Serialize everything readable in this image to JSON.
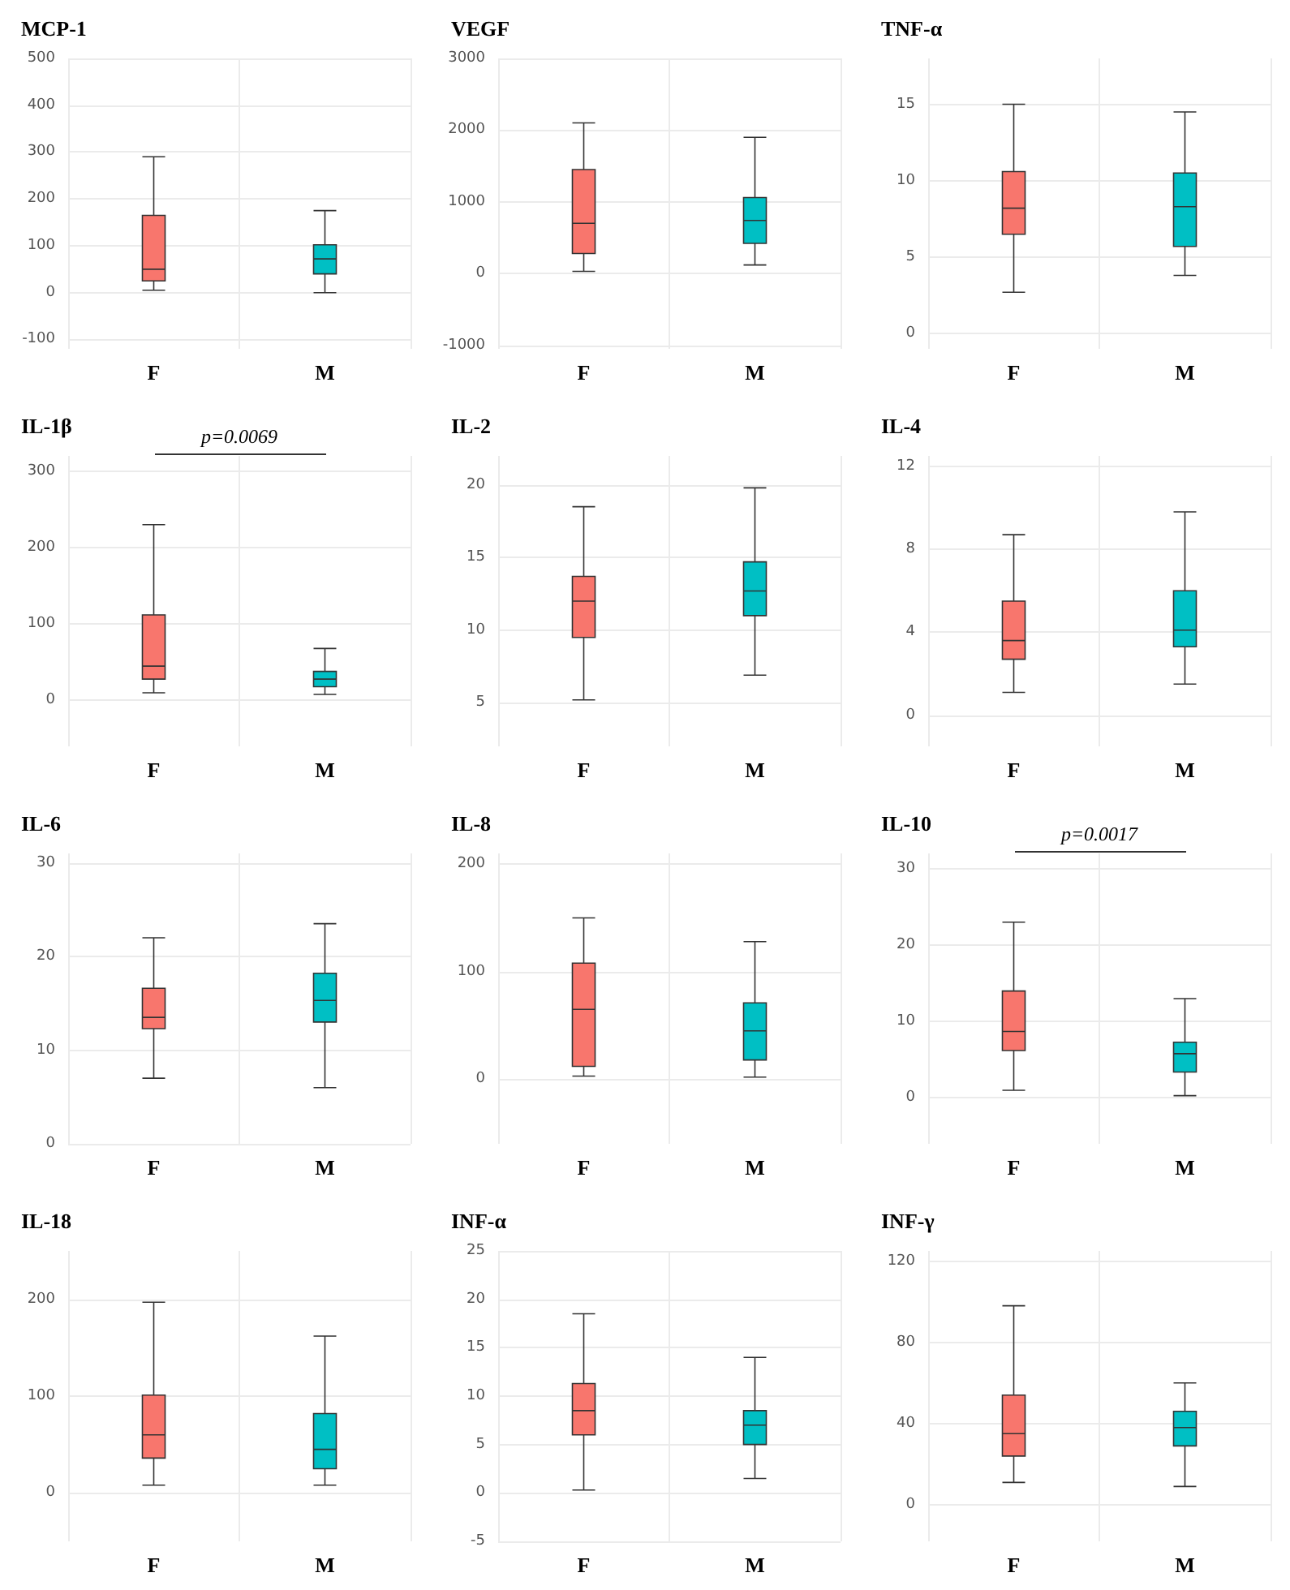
{
  "chart_data": [
    {
      "type": "box",
      "title": "MCP-1",
      "categories": [
        "F",
        "M"
      ],
      "colors": [
        "#f8766d",
        "#00bfc4"
      ],
      "ylim": [
        -120,
        500
      ],
      "yticks": [
        -100,
        0,
        100,
        200,
        300,
        400,
        500
      ],
      "grid": true,
      "boxes": [
        {
          "low": 5,
          "q1": 25,
          "median": 50,
          "q3": 165,
          "high": 290
        },
        {
          "low": 0,
          "q1": 40,
          "median": 72,
          "q3": 102,
          "high": 175
        }
      ]
    },
    {
      "type": "box",
      "title": "VEGF",
      "categories": [
        "F",
        "M"
      ],
      "colors": [
        "#f8766d",
        "#00bfc4"
      ],
      "ylim": [
        -1050,
        3000
      ],
      "yticks": [
        -1000,
        0,
        1000,
        2000,
        3000
      ],
      "grid": true,
      "boxes": [
        {
          "low": 30,
          "q1": 280,
          "median": 700,
          "q3": 1450,
          "high": 2100
        },
        {
          "low": 120,
          "q1": 420,
          "median": 740,
          "q3": 1060,
          "high": 1900
        }
      ]
    },
    {
      "type": "box",
      "title": "TNF-α",
      "categories": [
        "F",
        "M"
      ],
      "colors": [
        "#f8766d",
        "#00bfc4"
      ],
      "ylim": [
        -1,
        18
      ],
      "yticks": [
        0,
        5,
        10,
        15
      ],
      "grid": true,
      "boxes": [
        {
          "low": 2.7,
          "q1": 6.5,
          "median": 8.2,
          "q3": 10.6,
          "high": 15
        },
        {
          "low": 3.8,
          "q1": 5.7,
          "median": 8.3,
          "q3": 10.5,
          "high": 14.5
        }
      ]
    },
    {
      "type": "box",
      "title": "IL-1β",
      "categories": [
        "F",
        "M"
      ],
      "colors": [
        "#f8766d",
        "#00bfc4"
      ],
      "ylim": [
        -60,
        320
      ],
      "yticks": [
        0,
        100,
        200,
        300
      ],
      "grid": true,
      "annotations": [
        "p=0.0069"
      ],
      "boxes": [
        {
          "low": 10,
          "q1": 28,
          "median": 45,
          "q3": 112,
          "high": 230
        },
        {
          "low": 8,
          "q1": 18,
          "median": 28,
          "q3": 38,
          "high": 68
        }
      ]
    },
    {
      "type": "box",
      "title": "IL-2",
      "categories": [
        "F",
        "M"
      ],
      "colors": [
        "#f8766d",
        "#00bfc4"
      ],
      "ylim": [
        2,
        22
      ],
      "yticks": [
        5,
        10,
        15,
        20
      ],
      "grid": true,
      "boxes": [
        {
          "low": 5.2,
          "q1": 9.5,
          "median": 12,
          "q3": 13.7,
          "high": 18.5
        },
        {
          "low": 6.9,
          "q1": 11,
          "median": 12.7,
          "q3": 14.7,
          "high": 19.8
        }
      ]
    },
    {
      "type": "box",
      "title": "IL-4",
      "categories": [
        "F",
        "M"
      ],
      "colors": [
        "#f8766d",
        "#00bfc4"
      ],
      "ylim": [
        -1.5,
        12.5
      ],
      "yticks": [
        0,
        4,
        8,
        12
      ],
      "grid": true,
      "boxes": [
        {
          "low": 1.1,
          "q1": 2.7,
          "median": 3.6,
          "q3": 5.5,
          "high": 8.7
        },
        {
          "low": 1.5,
          "q1": 3.3,
          "median": 4.1,
          "q3": 6,
          "high": 9.8
        }
      ]
    },
    {
      "type": "box",
      "title": "IL-6",
      "categories": [
        "F",
        "M"
      ],
      "colors": [
        "#f8766d",
        "#00bfc4"
      ],
      "ylim": [
        0,
        31
      ],
      "yticks": [
        0,
        10,
        20,
        30
      ],
      "grid": true,
      "boxes": [
        {
          "low": 7,
          "q1": 12.3,
          "median": 13.5,
          "q3": 16.6,
          "high": 22
        },
        {
          "low": 6,
          "q1": 13,
          "median": 15.3,
          "q3": 18.2,
          "high": 23.5
        }
      ]
    },
    {
      "type": "box",
      "title": "IL-8",
      "categories": [
        "F",
        "M"
      ],
      "colors": [
        "#f8766d",
        "#00bfc4"
      ],
      "ylim": [
        -60,
        210
      ],
      "yticks": [
        0,
        100,
        200
      ],
      "grid": true,
      "boxes": [
        {
          "low": 3,
          "q1": 12,
          "median": 65,
          "q3": 108,
          "high": 150
        },
        {
          "low": 2,
          "q1": 18,
          "median": 45,
          "q3": 71,
          "high": 128
        }
      ]
    },
    {
      "type": "box",
      "title": "IL-10",
      "categories": [
        "F",
        "M"
      ],
      "colors": [
        "#f8766d",
        "#00bfc4"
      ],
      "ylim": [
        -6,
        32
      ],
      "yticks": [
        0,
        10,
        20,
        30
      ],
      "grid": true,
      "annotations": [
        "p=0.0017"
      ],
      "boxes": [
        {
          "low": 1,
          "q1": 6.2,
          "median": 8.7,
          "q3": 14,
          "high": 23
        },
        {
          "low": 0.3,
          "q1": 3.4,
          "median": 5.8,
          "q3": 7.3,
          "high": 13
        }
      ]
    },
    {
      "type": "box",
      "title": "IL-18",
      "categories": [
        "F",
        "M"
      ],
      "colors": [
        "#f8766d",
        "#00bfc4"
      ],
      "ylim": [
        -50,
        250
      ],
      "yticks": [
        0,
        100,
        200
      ],
      "grid": true,
      "boxes": [
        {
          "low": 8,
          "q1": 36,
          "median": 60,
          "q3": 101,
          "high": 197
        },
        {
          "low": 8,
          "q1": 25,
          "median": 45,
          "q3": 82,
          "high": 162
        }
      ]
    },
    {
      "type": "box",
      "title": "INF-α",
      "categories": [
        "F",
        "M"
      ],
      "colors": [
        "#f8766d",
        "#00bfc4"
      ],
      "ylim": [
        -5,
        25
      ],
      "yticks": [
        -5,
        0,
        5,
        10,
        15,
        20,
        25
      ],
      "grid": true,
      "boxes": [
        {
          "low": 0.3,
          "q1": 6,
          "median": 8.5,
          "q3": 11.3,
          "high": 18.5
        },
        {
          "low": 1.5,
          "q1": 5,
          "median": 7,
          "q3": 8.5,
          "high": 14
        }
      ]
    },
    {
      "type": "box",
      "title": "INF-γ",
      "categories": [
        "F",
        "M"
      ],
      "colors": [
        "#f8766d",
        "#00bfc4"
      ],
      "ylim": [
        -18,
        125
      ],
      "yticks": [
        0,
        40,
        80,
        120
      ],
      "grid": true,
      "boxes": [
        {
          "low": 11,
          "q1": 24,
          "median": 35,
          "q3": 54,
          "high": 98
        },
        {
          "low": 9,
          "q1": 29,
          "median": 38,
          "q3": 46,
          "high": 60
        }
      ]
    }
  ]
}
